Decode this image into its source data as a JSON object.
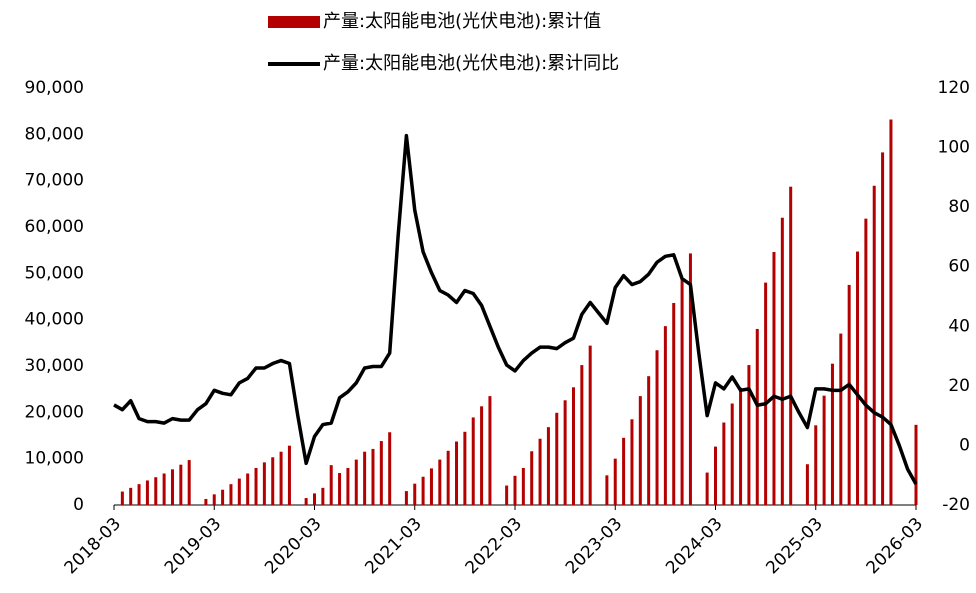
{
  "chart_data": {
    "type": "bar-line",
    "categories": [
      "2018-03",
      null,
      null,
      null,
      null,
      null,
      null,
      null,
      null,
      null,
      null,
      null,
      "2019-03",
      null,
      null,
      null,
      null,
      null,
      null,
      null,
      null,
      null,
      null,
      null,
      "2020-03",
      null,
      null,
      null,
      null,
      null,
      null,
      null,
      null,
      null,
      null,
      null,
      "2021-03",
      null,
      null,
      null,
      null,
      null,
      null,
      null,
      null,
      null,
      null,
      null,
      "2022-03",
      null,
      null,
      null,
      null,
      null,
      null,
      null,
      null,
      null,
      null,
      null,
      "2023-03",
      null,
      null,
      null,
      null,
      null,
      null,
      null,
      null,
      null,
      null,
      null,
      "2024-03",
      null,
      null,
      null,
      null,
      null,
      null,
      null,
      null,
      null,
      null,
      null,
      "2025-03",
      null,
      null,
      null,
      null,
      null,
      null,
      null,
      null,
      null,
      null,
      null,
      "2026-03"
    ],
    "series": [
      {
        "name": "产量:太阳能电池(光伏电池):累计值",
        "type": "bar",
        "color": "#b30000",
        "values": [
          null,
          2900,
          3700,
          4500,
          5300,
          6000,
          6800,
          7700,
          8700,
          9700,
          null,
          1300,
          2300,
          3300,
          4500,
          5700,
          6800,
          8000,
          9200,
          10300,
          11500,
          12800,
          null,
          1500,
          2500,
          3700,
          8600,
          6900,
          8000,
          9800,
          11500,
          12100,
          13800,
          15700,
          null,
          3000,
          4600,
          6100,
          7900,
          9800,
          11700,
          13700,
          15800,
          18900,
          21300,
          23500,
          null,
          4200,
          6300,
          8000,
          11600,
          14300,
          16800,
          19900,
          22600,
          25400,
          30200,
          34400,
          null,
          6400,
          10000,
          14500,
          18500,
          23500,
          27800,
          33400,
          38600,
          43600,
          48900,
          54300,
          null,
          7000,
          12600,
          17800,
          21900,
          25300,
          30200,
          38000,
          48000,
          54600,
          62000,
          68700,
          null,
          8800,
          17200,
          23600,
          30500,
          37000,
          47500,
          54700,
          61800,
          68900,
          76100,
          83200,
          null,
          null,
          17300
        ]
      },
      {
        "name": "产量:太阳能电池(光伏电池):累计同比",
        "type": "line",
        "axis": "y2",
        "color": "#000000",
        "values": [
          13.6,
          12,
          15,
          9,
          8,
          8,
          7.5,
          9,
          8.5,
          8.5,
          12,
          14,
          18.5,
          17.5,
          17,
          21,
          22.5,
          26,
          26,
          27.5,
          28.5,
          27.5,
          10,
          -6,
          3,
          7,
          7.5,
          16,
          18,
          21,
          26,
          26.5,
          26.5,
          31,
          70,
          104,
          79,
          65,
          58,
          52,
          50.5,
          48,
          52,
          51,
          47,
          40,
          33,
          27,
          25,
          28.5,
          31,
          33,
          33,
          32.5,
          34.5,
          36,
          44,
          48,
          44.5,
          41,
          53,
          57,
          54,
          55,
          57.5,
          61.5,
          63.5,
          64,
          56,
          54,
          31,
          10,
          21,
          19,
          23,
          18.5,
          19,
          13.5,
          14,
          16.5,
          15.5,
          16.5,
          11,
          6,
          19,
          19,
          18.5,
          18.5,
          20.5,
          17,
          13.5,
          11,
          9.5,
          7,
          0,
          -8,
          -13
        ]
      }
    ],
    "ylim": [
      0,
      90000
    ],
    "yticks": [
      0,
      {
        "value": 10000,
        "label": "10,000"
      },
      {
        "value": 20000,
        "label": "20,000"
      },
      {
        "value": 30000,
        "label": "30,000"
      },
      {
        "value": 40000,
        "label": "40,000"
      },
      {
        "value": 50000,
        "label": "50,000"
      },
      {
        "value": 60000,
        "label": "60,000"
      },
      {
        "value": 70000,
        "label": "70,000"
      },
      {
        "value": 80000,
        "label": "80,000"
      },
      {
        "value": 90000,
        "label": "90,000"
      }
    ],
    "y2lim": [
      -20,
      120
    ],
    "y2ticks": [
      -20,
      0,
      20,
      40,
      60,
      80,
      100,
      120
    ],
    "legend": "top"
  }
}
